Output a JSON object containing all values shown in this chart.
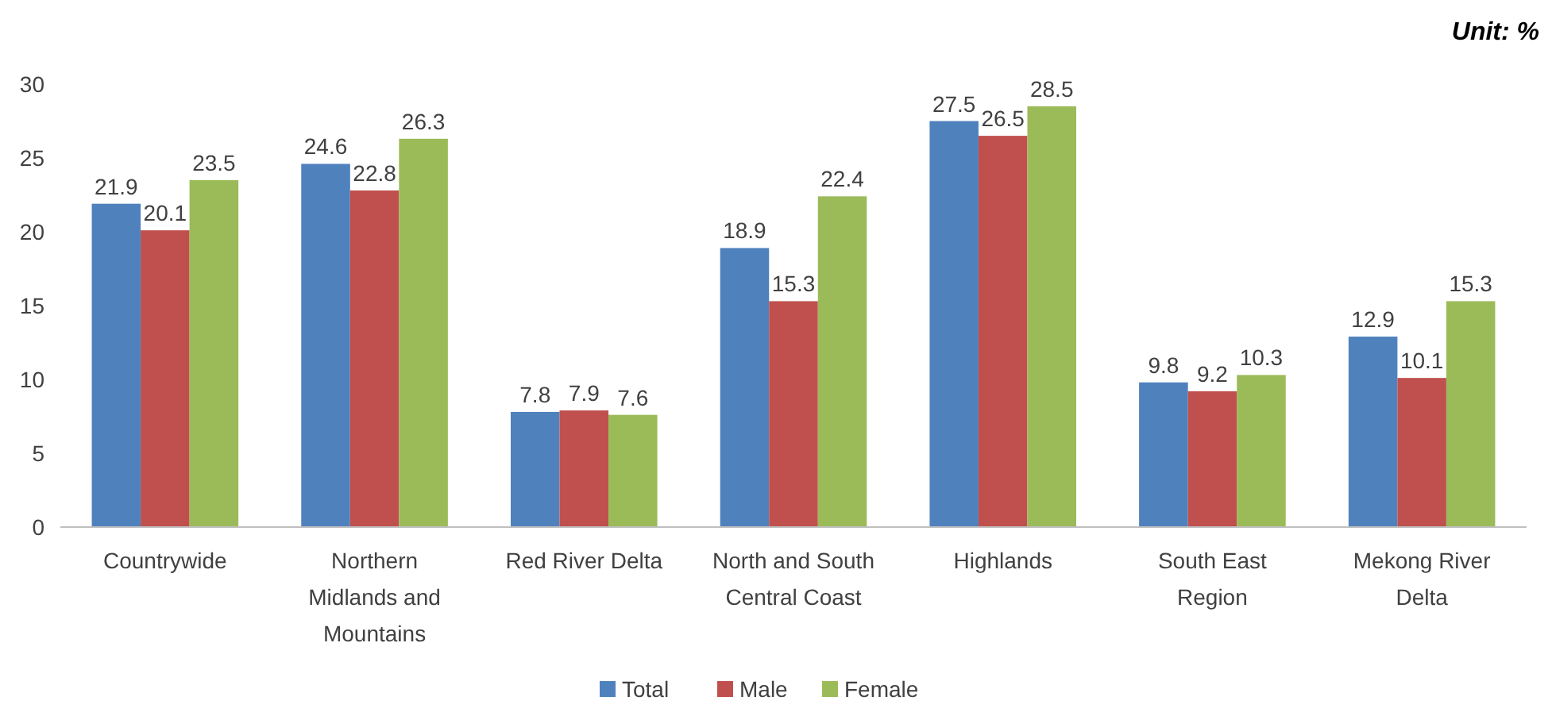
{
  "chart_data": {
    "type": "bar",
    "categories": [
      "Countrywide",
      "Northern Midlands and Mountains",
      "Red River Delta",
      "North and South Central Coast",
      "Highlands",
      "South East Region",
      "Mekong River Delta"
    ],
    "series": [
      {
        "name": "Total",
        "color": "#4f81bd",
        "values": [
          21.9,
          24.6,
          7.8,
          18.9,
          27.5,
          9.8,
          12.9
        ]
      },
      {
        "name": "Male",
        "color": "#c0504d",
        "values": [
          20.1,
          22.8,
          7.9,
          15.3,
          26.5,
          9.2,
          10.1
        ]
      },
      {
        "name": "Female",
        "color": "#9bbb59",
        "values": [
          23.5,
          26.3,
          7.6,
          22.4,
          28.5,
          10.3,
          15.3
        ]
      }
    ],
    "ylim": [
      0,
      30
    ],
    "yticks": [
      0,
      5,
      10,
      15,
      20,
      25,
      30
    ],
    "grid": false,
    "legend": "bottom",
    "data_labels": true,
    "annotations": [
      "Unit: %"
    ]
  }
}
